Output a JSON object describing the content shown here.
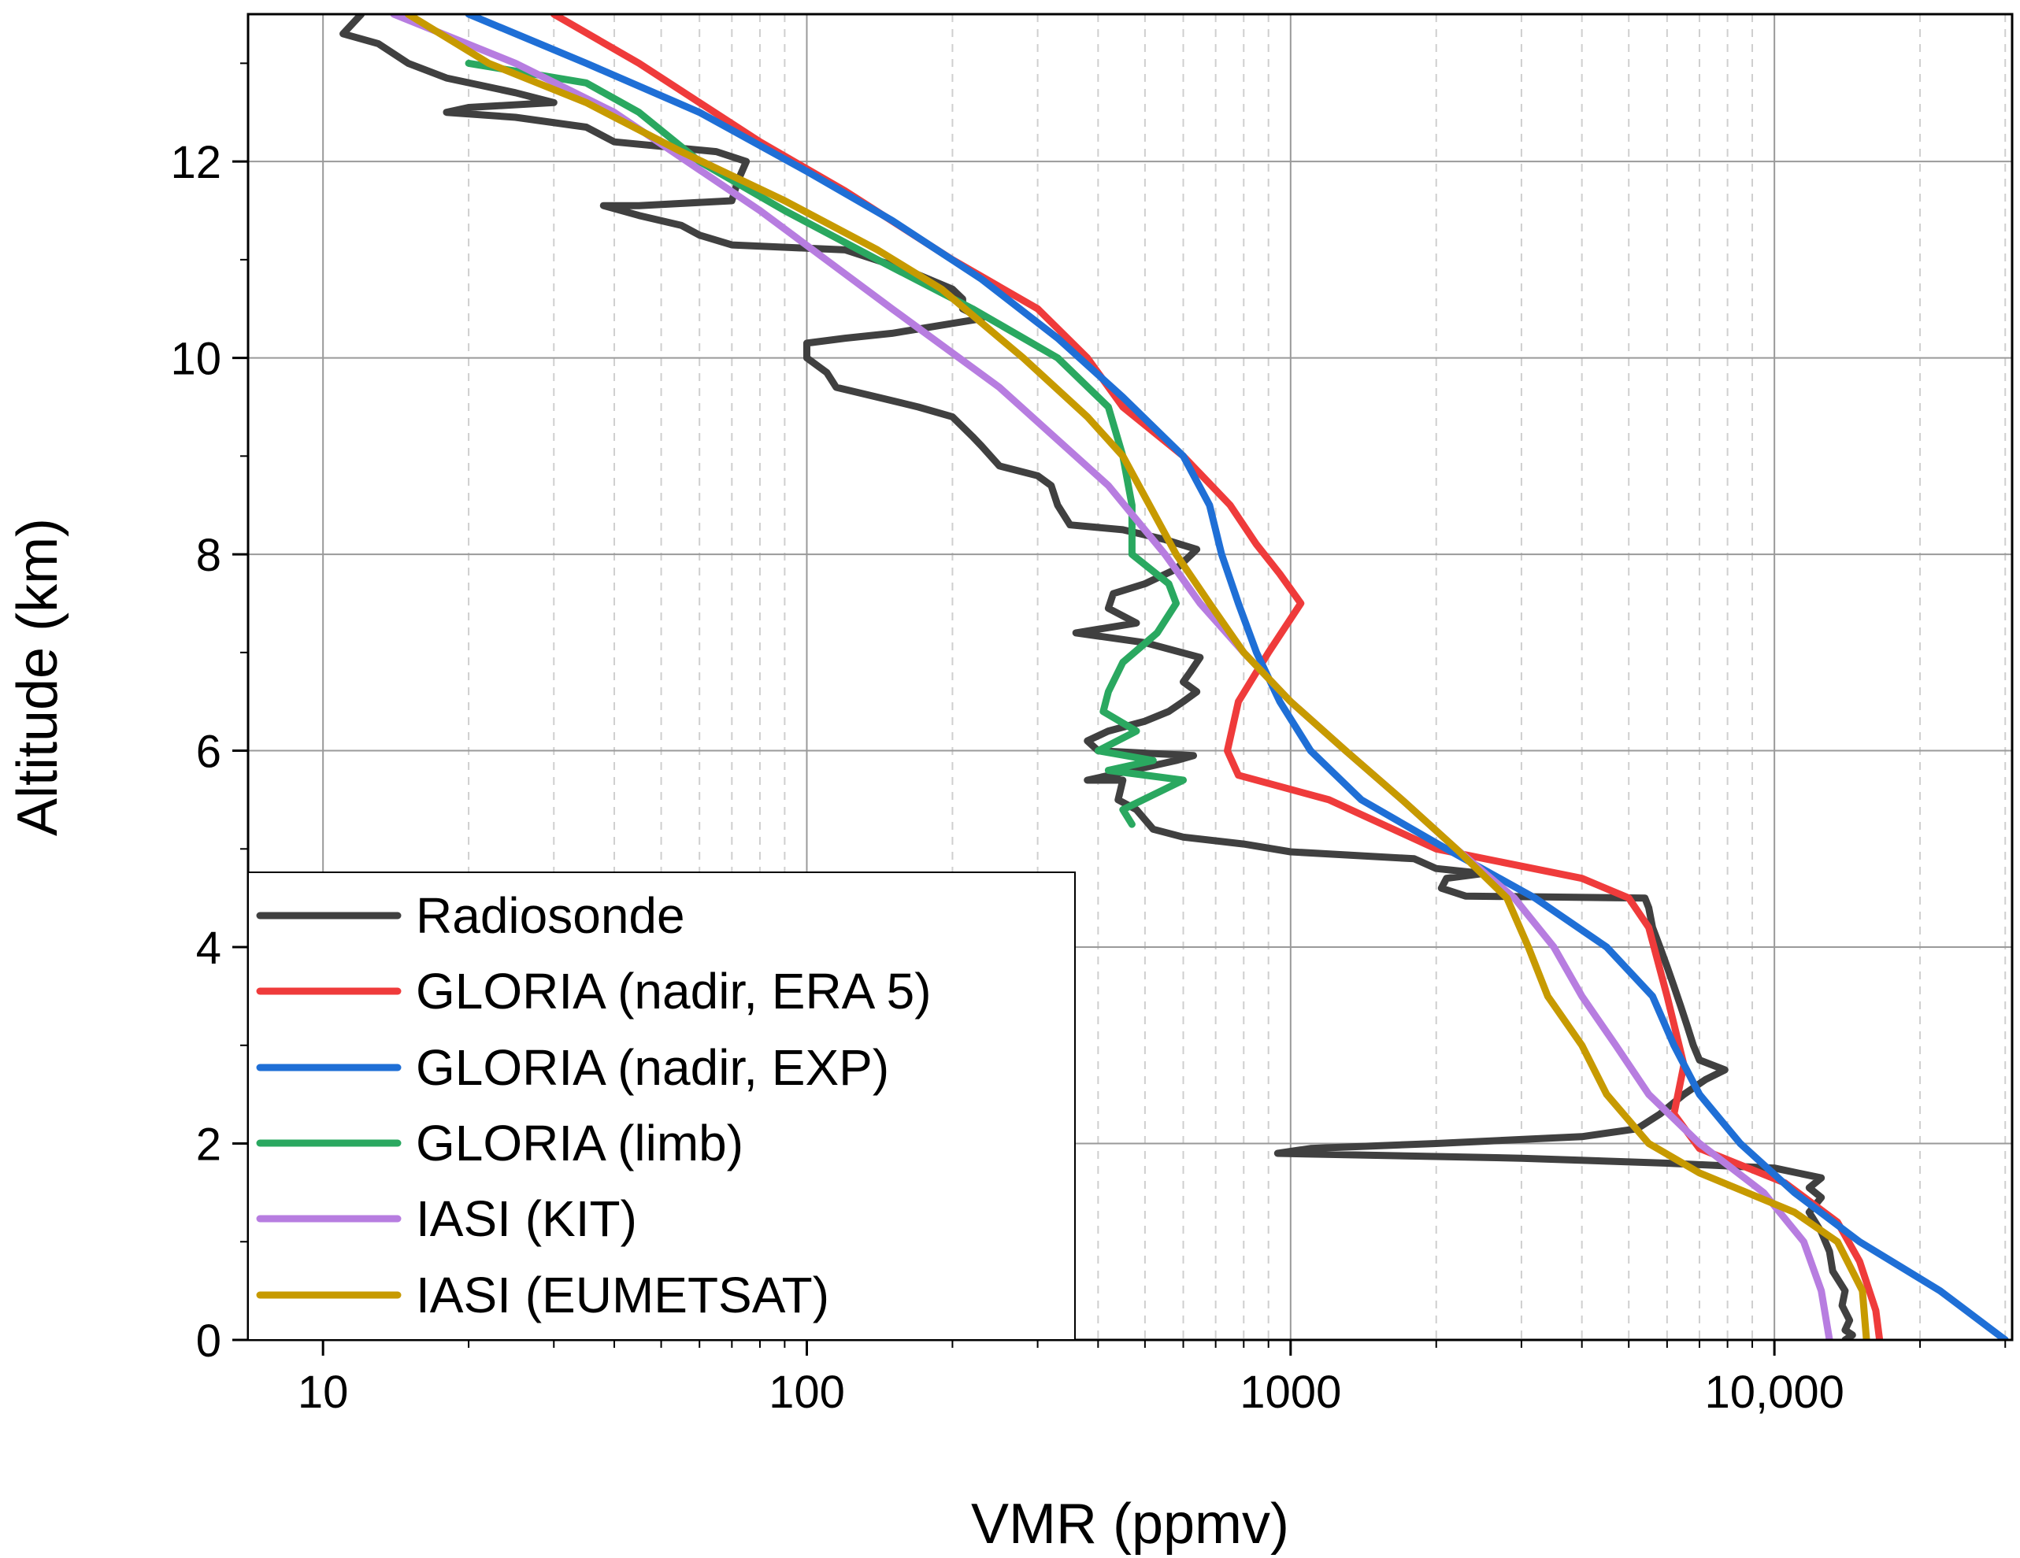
{
  "chart_data": {
    "type": "line",
    "title": "",
    "xlabel": "VMR (ppmv)",
    "ylabel": "Altitude (km)",
    "xscale": "log",
    "xlim": [
      7,
      31000
    ],
    "ylim": [
      0,
      13.5
    ],
    "xticks": [
      {
        "value": 10,
        "label": "10"
      },
      {
        "value": 100,
        "label": "100"
      },
      {
        "value": 1000,
        "label": "1000"
      },
      {
        "value": 10000,
        "label": "10,000"
      }
    ],
    "yticks": [
      {
        "value": 0,
        "label": "0"
      },
      {
        "value": 2,
        "label": "2"
      },
      {
        "value": 4,
        "label": "4"
      },
      {
        "value": 6,
        "label": "6"
      },
      {
        "value": 8,
        "label": "8"
      },
      {
        "value": 10,
        "label": "10"
      },
      {
        "value": 12,
        "label": "12"
      }
    ],
    "grid": true,
    "legend_position": "bottom-left",
    "series": [
      {
        "name": "Radiosonde",
        "color": "#404040",
        "points": [
          [
            14000,
            0
          ],
          [
            14500,
            0.05
          ],
          [
            14000,
            0.1
          ],
          [
            14300,
            0.2
          ],
          [
            13800,
            0.35
          ],
          [
            14000,
            0.5
          ],
          [
            13200,
            0.7
          ],
          [
            13000,
            0.9
          ],
          [
            12500,
            1.1
          ],
          [
            11800,
            1.3
          ],
          [
            12500,
            1.45
          ],
          [
            11800,
            1.55
          ],
          [
            12500,
            1.65
          ],
          [
            10000,
            1.75
          ],
          [
            6000,
            1.8
          ],
          [
            3000,
            1.85
          ],
          [
            1500,
            1.88
          ],
          [
            940,
            1.9
          ],
          [
            1100,
            1.95
          ],
          [
            2000,
            2.0
          ],
          [
            4000,
            2.07
          ],
          [
            5200,
            2.15
          ],
          [
            5800,
            2.3
          ],
          [
            6500,
            2.5
          ],
          [
            7200,
            2.65
          ],
          [
            7900,
            2.75
          ],
          [
            7000,
            2.85
          ],
          [
            6800,
            3.0
          ],
          [
            6600,
            3.2
          ],
          [
            6400,
            3.4
          ],
          [
            6200,
            3.6
          ],
          [
            6000,
            3.8
          ],
          [
            5800,
            4.0
          ],
          [
            5600,
            4.2
          ],
          [
            5500,
            4.4
          ],
          [
            5400,
            4.5
          ],
          [
            2300,
            4.52
          ],
          [
            2050,
            4.6
          ],
          [
            2100,
            4.7
          ],
          [
            2500,
            4.75
          ],
          [
            2000,
            4.8
          ],
          [
            1800,
            4.9
          ],
          [
            1000,
            4.97
          ],
          [
            800,
            5.05
          ],
          [
            600,
            5.12
          ],
          [
            520,
            5.2
          ],
          [
            480,
            5.4
          ],
          [
            440,
            5.5
          ],
          [
            450,
            5.7
          ],
          [
            380,
            5.7
          ],
          [
            470,
            5.8
          ],
          [
            580,
            5.9
          ],
          [
            630,
            5.95
          ],
          [
            400,
            6.0
          ],
          [
            380,
            6.1
          ],
          [
            420,
            6.2
          ],
          [
            500,
            6.3
          ],
          [
            560,
            6.4
          ],
          [
            600,
            6.5
          ],
          [
            640,
            6.6
          ],
          [
            600,
            6.7
          ],
          [
            620,
            6.8
          ],
          [
            650,
            6.95
          ],
          [
            500,
            7.1
          ],
          [
            360,
            7.2
          ],
          [
            480,
            7.3
          ],
          [
            420,
            7.45
          ],
          [
            430,
            7.6
          ],
          [
            500,
            7.7
          ],
          [
            580,
            7.85
          ],
          [
            640,
            8.05
          ],
          [
            550,
            8.15
          ],
          [
            450,
            8.25
          ],
          [
            350,
            8.3
          ],
          [
            330,
            8.5
          ],
          [
            320,
            8.7
          ],
          [
            300,
            8.8
          ],
          [
            250,
            8.9
          ],
          [
            230,
            9.1
          ],
          [
            220,
            9.2
          ],
          [
            200,
            9.4
          ],
          [
            170,
            9.5
          ],
          [
            140,
            9.6
          ],
          [
            115,
            9.7
          ],
          [
            110,
            9.85
          ],
          [
            100,
            10.0
          ],
          [
            100,
            10.15
          ],
          [
            120,
            10.2
          ],
          [
            150,
            10.25
          ],
          [
            230,
            10.4
          ],
          [
            210,
            10.5
          ],
          [
            210,
            10.6
          ],
          [
            200,
            10.7
          ],
          [
            160,
            10.9
          ],
          [
            120,
            11.1
          ],
          [
            70,
            11.15
          ],
          [
            60,
            11.25
          ],
          [
            55,
            11.35
          ],
          [
            45,
            11.45
          ],
          [
            38,
            11.55
          ],
          [
            45,
            11.55
          ],
          [
            70,
            11.6
          ],
          [
            72,
            11.8
          ],
          [
            75,
            12.0
          ],
          [
            65,
            12.1
          ],
          [
            40,
            12.2
          ],
          [
            35,
            12.35
          ],
          [
            25,
            12.45
          ],
          [
            18,
            12.5
          ],
          [
            20,
            12.55
          ],
          [
            30,
            12.6
          ],
          [
            25,
            12.7
          ],
          [
            18,
            12.85
          ],
          [
            15,
            13.0
          ],
          [
            13,
            13.2
          ],
          [
            11,
            13.3
          ],
          [
            12,
            13.5
          ]
        ]
      },
      {
        "name": "GLORIA (nadir, ERA 5)",
        "color": "#ef3b3b",
        "points": [
          [
            16500,
            0
          ],
          [
            16200,
            0.3
          ],
          [
            15000,
            0.8
          ],
          [
            13500,
            1.2
          ],
          [
            10500,
            1.6
          ],
          [
            7000,
            1.95
          ],
          [
            6200,
            2.3
          ],
          [
            6500,
            2.8
          ],
          [
            6000,
            3.5
          ],
          [
            5500,
            4.2
          ],
          [
            5000,
            4.5
          ],
          [
            4000,
            4.7
          ],
          [
            2000,
            5.0
          ],
          [
            1200,
            5.5
          ],
          [
            780,
            5.75
          ],
          [
            740,
            6.0
          ],
          [
            780,
            6.5
          ],
          [
            900,
            7.0
          ],
          [
            1050,
            7.5
          ],
          [
            950,
            7.8
          ],
          [
            850,
            8.1
          ],
          [
            750,
            8.5
          ],
          [
            600,
            9.0
          ],
          [
            450,
            9.5
          ],
          [
            380,
            10.0
          ],
          [
            300,
            10.5
          ],
          [
            200,
            11.0
          ],
          [
            120,
            11.7
          ],
          [
            80,
            12.2
          ],
          [
            60,
            12.6
          ],
          [
            45,
            13.0
          ],
          [
            30,
            13.5
          ]
        ]
      },
      {
        "name": "GLORIA (nadir, EXP)",
        "color": "#1f6fd6",
        "points": [
          [
            30000,
            0
          ],
          [
            22000,
            0.5
          ],
          [
            15000,
            1.0
          ],
          [
            11000,
            1.5
          ],
          [
            8500,
            2.0
          ],
          [
            7000,
            2.5
          ],
          [
            6200,
            3.0
          ],
          [
            5600,
            3.5
          ],
          [
            4500,
            4.0
          ],
          [
            3200,
            4.5
          ],
          [
            2100,
            5.0
          ],
          [
            1400,
            5.5
          ],
          [
            1100,
            6.0
          ],
          [
            950,
            6.5
          ],
          [
            850,
            7.0
          ],
          [
            780,
            7.5
          ],
          [
            720,
            8.0
          ],
          [
            680,
            8.5
          ],
          [
            600,
            9.0
          ],
          [
            450,
            9.6
          ],
          [
            330,
            10.2
          ],
          [
            230,
            10.8
          ],
          [
            150,
            11.4
          ],
          [
            100,
            11.9
          ],
          [
            60,
            12.5
          ],
          [
            35,
            13.0
          ],
          [
            20,
            13.5
          ]
        ]
      },
      {
        "name": "GLORIA (limb)",
        "color": "#2aa860",
        "points": [
          [
            470,
            5.25
          ],
          [
            450,
            5.4
          ],
          [
            600,
            5.7
          ],
          [
            420,
            5.8
          ],
          [
            520,
            5.9
          ],
          [
            400,
            6.0
          ],
          [
            480,
            6.2
          ],
          [
            410,
            6.4
          ],
          [
            420,
            6.6
          ],
          [
            450,
            6.9
          ],
          [
            530,
            7.2
          ],
          [
            580,
            7.5
          ],
          [
            560,
            7.7
          ],
          [
            470,
            8.0
          ],
          [
            470,
            8.5
          ],
          [
            450,
            9.0
          ],
          [
            420,
            9.5
          ],
          [
            330,
            10.0
          ],
          [
            220,
            10.5
          ],
          [
            140,
            11.0
          ],
          [
            90,
            11.5
          ],
          [
            60,
            12.0
          ],
          [
            45,
            12.5
          ],
          [
            35,
            12.8
          ],
          [
            20,
            13.0
          ]
        ]
      },
      {
        "name": "IASI (KIT)",
        "color": "#b77de0",
        "points": [
          [
            13000,
            0
          ],
          [
            12500,
            0.5
          ],
          [
            11500,
            1.0
          ],
          [
            9500,
            1.5
          ],
          [
            7000,
            2.0
          ],
          [
            5500,
            2.5
          ],
          [
            4700,
            3.0
          ],
          [
            4000,
            3.5
          ],
          [
            3500,
            4.0
          ],
          [
            2900,
            4.5
          ],
          [
            2200,
            5.0
          ],
          [
            1700,
            5.5
          ],
          [
            1300,
            6.0
          ],
          [
            1000,
            6.5
          ],
          [
            800,
            7.0
          ],
          [
            650,
            7.5
          ],
          [
            550,
            8.0
          ],
          [
            420,
            8.7
          ],
          [
            250,
            9.7
          ],
          [
            150,
            10.5
          ],
          [
            80,
            11.5
          ],
          [
            40,
            12.5
          ],
          [
            25,
            13.0
          ],
          [
            14,
            13.5
          ]
        ]
      },
      {
        "name": "IASI (EUMETSAT)",
        "color": "#c79a00",
        "points": [
          [
            15500,
            0
          ],
          [
            15200,
            0.5
          ],
          [
            13500,
            1.0
          ],
          [
            11000,
            1.3
          ],
          [
            7000,
            1.7
          ],
          [
            5500,
            2.0
          ],
          [
            4500,
            2.5
          ],
          [
            4000,
            3.0
          ],
          [
            3400,
            3.5
          ],
          [
            3100,
            4.0
          ],
          [
            2800,
            4.5
          ],
          [
            2200,
            5.0
          ],
          [
            1700,
            5.5
          ],
          [
            1300,
            6.0
          ],
          [
            1000,
            6.5
          ],
          [
            800,
            7.0
          ],
          [
            680,
            7.5
          ],
          [
            580,
            8.0
          ],
          [
            450,
            9.0
          ],
          [
            380,
            9.4
          ],
          [
            280,
            10.0
          ],
          [
            190,
            10.7
          ],
          [
            140,
            11.1
          ],
          [
            90,
            11.6
          ],
          [
            55,
            12.1
          ],
          [
            35,
            12.6
          ],
          [
            22,
            13.0
          ],
          [
            15,
            13.5
          ]
        ]
      }
    ]
  }
}
